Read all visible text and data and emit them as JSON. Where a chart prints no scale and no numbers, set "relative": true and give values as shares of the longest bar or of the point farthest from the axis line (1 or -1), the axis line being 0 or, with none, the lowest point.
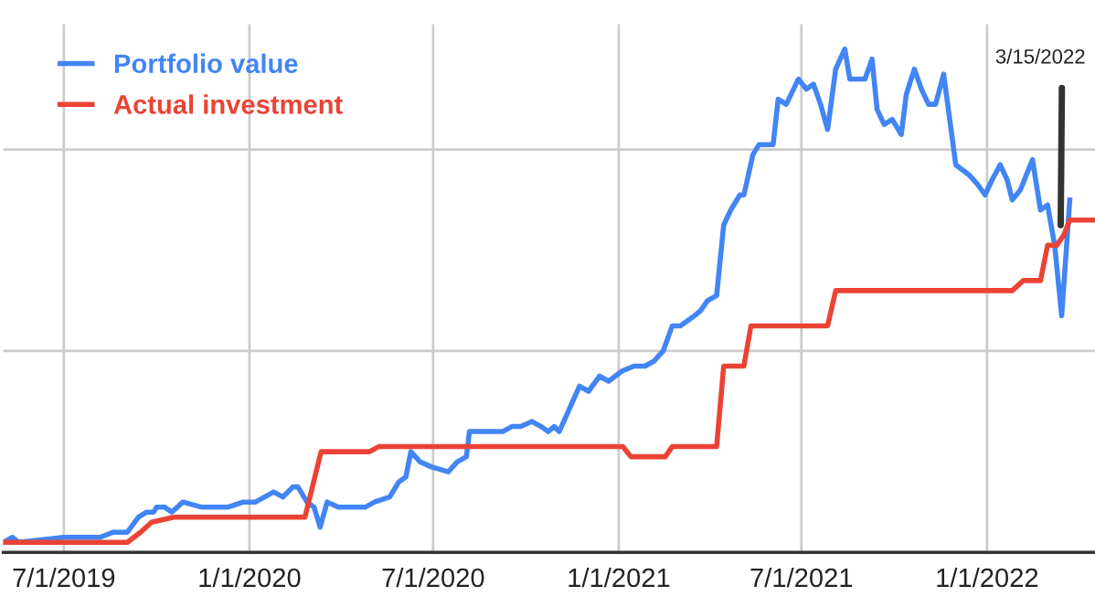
{
  "chart_data": {
    "type": "line",
    "relative": true,
    "xlim": [
      "2019-05-02",
      "2022-04-18"
    ],
    "xticks": [
      {
        "value": "2019-07-01",
        "label": "7/1/2019"
      },
      {
        "value": "2020-01-01",
        "label": "1/1/2020"
      },
      {
        "value": "2020-07-01",
        "label": "7/1/2020"
      },
      {
        "value": "2021-01-01",
        "label": "1/1/2021"
      },
      {
        "value": "2021-07-01",
        "label": "7/1/2021"
      },
      {
        "value": "2022-01-01",
        "label": "1/1/2022"
      }
    ],
    "tick_labels": "x",
    "grid": true,
    "legend": "top left",
    "marker": "none",
    "line_style": "solid",
    "annotations": [
      {
        "text": "3/15/2022",
        "x": "2022-03-15",
        "y": 0.65
      }
    ],
    "series": [
      {
        "name": "Portfolio value",
        "color": "#4285f4",
        "x": [
          "2019-05-02",
          "2019-05-11",
          "2019-05-17",
          "2019-07-01",
          "2019-08-06",
          "2019-08-19",
          "2019-09-02",
          "2019-09-13",
          "2019-09-21",
          "2019-09-28",
          "2019-10-01",
          "2019-10-09",
          "2019-10-16",
          "2019-10-27",
          "2019-11-14",
          "2019-12-11",
          "2019-12-26",
          "2020-01-07",
          "2020-01-25",
          "2020-02-03",
          "2020-02-13",
          "2020-02-18",
          "2020-02-27",
          "2020-03-05",
          "2020-03-11",
          "2020-03-18",
          "2020-03-29",
          "2020-04-25",
          "2020-05-04",
          "2020-05-19",
          "2020-05-28",
          "2020-06-04",
          "2020-06-09",
          "2020-06-18",
          "2020-06-29",
          "2020-07-16",
          "2020-07-25",
          "2020-08-03",
          "2020-08-06",
          "2020-08-15",
          "2020-08-24",
          "2020-09-08",
          "2020-09-17",
          "2020-09-26",
          "2020-10-07",
          "2020-10-16",
          "2020-10-23",
          "2020-10-29",
          "2020-11-03",
          "2020-11-23",
          "2020-12-02",
          "2020-12-13",
          "2020-12-22",
          "2021-01-04",
          "2021-01-16",
          "2021-01-27",
          "2021-02-05",
          "2021-02-14",
          "2021-02-23",
          "2021-03-03",
          "2021-03-17",
          "2021-03-23",
          "2021-03-30",
          "2021-04-08",
          "2021-04-15",
          "2021-04-22",
          "2021-05-01",
          "2021-05-05",
          "2021-05-14",
          "2021-05-20",
          "2021-06-03",
          "2021-06-08",
          "2021-06-16",
          "2021-06-28",
          "2021-07-06",
          "2021-07-13",
          "2021-07-20",
          "2021-07-27",
          "2021-08-04",
          "2021-08-13",
          "2021-08-18",
          "2021-08-25",
          "2021-09-02",
          "2021-09-09",
          "2021-09-14",
          "2021-09-21",
          "2021-09-29",
          "2021-10-08",
          "2021-10-13",
          "2021-10-21",
          "2021-10-28",
          "2021-11-04",
          "2021-11-11",
          "2021-11-19",
          "2021-12-01",
          "2021-12-14",
          "2021-12-23",
          "2021-12-30",
          "2022-01-06",
          "2022-01-14",
          "2022-01-21",
          "2022-01-26",
          "2022-02-03",
          "2022-02-15",
          "2022-02-23",
          "2022-03-02",
          "2022-03-09",
          "2022-03-16",
          "2022-03-24"
        ],
        "values": [
          0.02,
          0.03,
          0.02,
          0.03,
          0.03,
          0.04,
          0.04,
          0.07,
          0.08,
          0.08,
          0.09,
          0.09,
          0.08,
          0.1,
          0.09,
          0.09,
          0.1,
          0.1,
          0.12,
          0.11,
          0.13,
          0.13,
          0.1,
          0.09,
          0.05,
          0.1,
          0.09,
          0.09,
          0.1,
          0.11,
          0.14,
          0.15,
          0.2,
          0.18,
          0.17,
          0.16,
          0.18,
          0.19,
          0.24,
          0.24,
          0.24,
          0.24,
          0.25,
          0.25,
          0.26,
          0.25,
          0.24,
          0.25,
          0.24,
          0.33,
          0.32,
          0.35,
          0.34,
          0.36,
          0.37,
          0.37,
          0.38,
          0.4,
          0.45,
          0.45,
          0.47,
          0.48,
          0.5,
          0.51,
          0.65,
          0.68,
          0.71,
          0.71,
          0.79,
          0.81,
          0.81,
          0.9,
          0.89,
          0.94,
          0.92,
          0.93,
          0.89,
          0.84,
          0.96,
          1.0,
          0.94,
          0.94,
          0.94,
          0.98,
          0.88,
          0.85,
          0.86,
          0.83,
          0.91,
          0.96,
          0.92,
          0.89,
          0.89,
          0.95,
          0.77,
          0.75,
          0.73,
          0.71,
          0.74,
          0.77,
          0.74,
          0.7,
          0.72,
          0.78,
          0.68,
          0.69,
          0.61,
          0.47,
          0.7
        ]
      },
      {
        "name": "Actual investment",
        "color": "#ea4335",
        "x": [
          "2019-05-02",
          "2019-09-02",
          "2019-09-15",
          "2019-09-26",
          "2019-10-18",
          "2020-02-25",
          "2020-03-12",
          "2020-04-29",
          "2020-05-08",
          "2021-01-05",
          "2021-01-13",
          "2021-02-16",
          "2021-02-23",
          "2021-04-08",
          "2021-04-15",
          "2021-05-05",
          "2021-05-12",
          "2021-07-27",
          "2021-08-04",
          "2022-01-26",
          "2022-02-06",
          "2022-02-23",
          "2022-03-02",
          "2022-03-11",
          "2022-03-18",
          "2022-03-24",
          "2022-04-18"
        ],
        "values": [
          0.02,
          0.02,
          0.04,
          0.06,
          0.07,
          0.07,
          0.2,
          0.2,
          0.21,
          0.21,
          0.19,
          0.19,
          0.21,
          0.21,
          0.37,
          0.37,
          0.45,
          0.45,
          0.52,
          0.52,
          0.54,
          0.54,
          0.61,
          0.61,
          0.63,
          0.66,
          0.66
        ]
      }
    ]
  }
}
